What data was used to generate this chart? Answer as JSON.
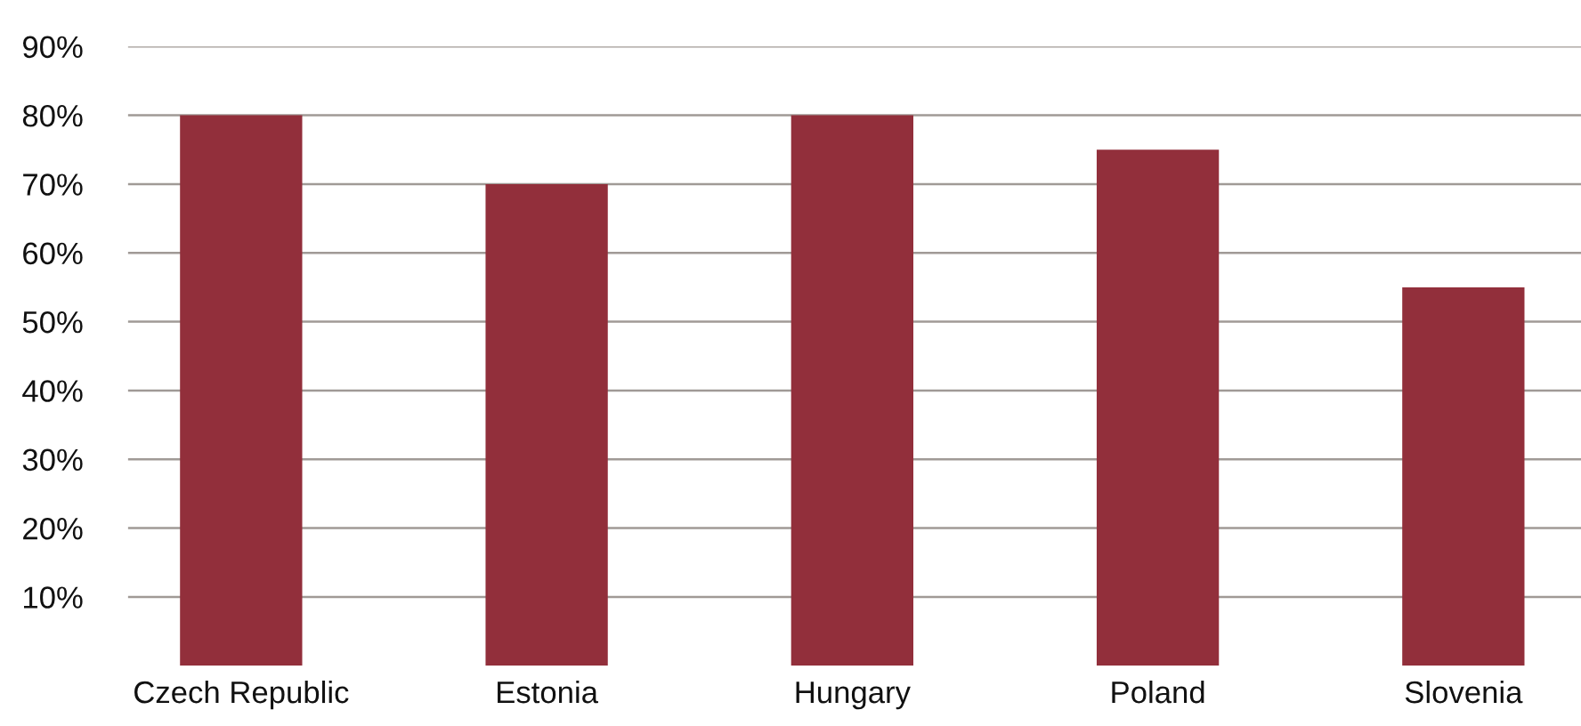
{
  "chart_data": {
    "type": "bar",
    "categories": [
      "Czech Republic",
      "Estonia",
      "Hungary",
      "Poland",
      "Slovenia"
    ],
    "values": [
      80,
      70,
      80,
      75,
      55
    ],
    "color": "#922f3b",
    "ylim": [
      0,
      90
    ],
    "yticks": [
      {
        "value": 10,
        "label": "10%"
      },
      {
        "value": 20,
        "label": "20%"
      },
      {
        "value": 30,
        "label": "30%"
      },
      {
        "value": 40,
        "label": "40%"
      },
      {
        "value": 50,
        "label": "50%"
      },
      {
        "value": 60,
        "label": "60%"
      },
      {
        "value": 70,
        "label": "70%"
      },
      {
        "value": 80,
        "label": "80%"
      },
      {
        "value": 90,
        "label": "90%"
      }
    ],
    "grid": "y",
    "legend": false
  }
}
